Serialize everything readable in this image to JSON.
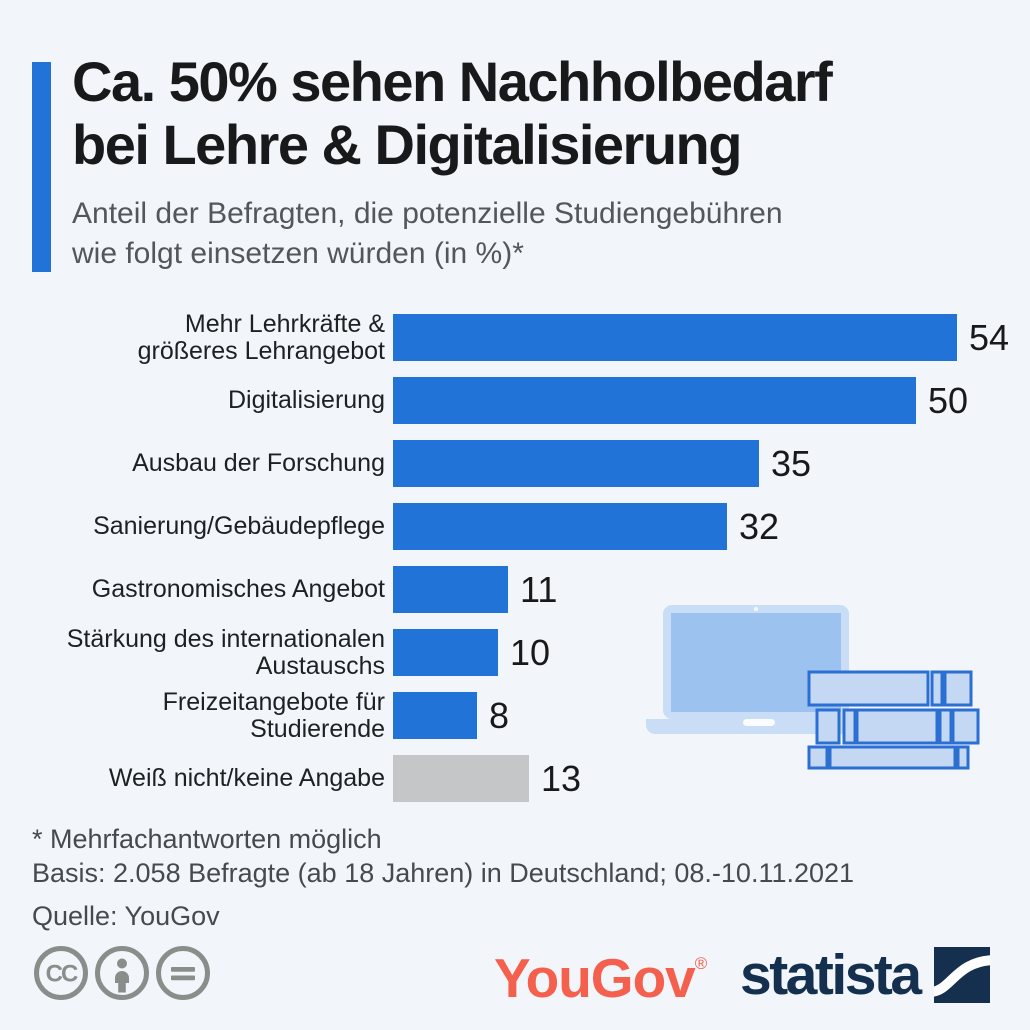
{
  "page": {
    "background": "#f2f5f9"
  },
  "header": {
    "accent_color": "#2273d8",
    "title_line1": "Ca. 50% sehen Nachholbedarf",
    "title_line2": "bei Lehre & Digitalisierung",
    "subtitle_line1": "Anteil der Befragten, die potenzielle Studiengebühren",
    "subtitle_line2": "wie folgt einsetzen würden (in %)*"
  },
  "chart_data": {
    "type": "bar",
    "orientation": "horizontal",
    "unit": "%",
    "title": "Ca. 50% sehen Nachholbedarf bei Lehre & Digitalisierung",
    "subtitle": "Anteil der Befragten, die potenzielle Studiengebühren wie folgt einsetzen würden (in %)*",
    "categories": [
      "Mehr Lehrkräfte &\ngrößeres Lehrangebot",
      "Digitalisierung",
      "Ausbau der Forschung",
      "Sanierung/Gebäudepflege",
      "Gastronomisches Angebot",
      "Stärkung des internationalen\nAustauschs",
      "Freizeitangebote für\nStudierende",
      "Weiß nicht/keine Angabe"
    ],
    "values": [
      54,
      50,
      35,
      32,
      11,
      10,
      8,
      13
    ],
    "value_labels": [
      "54",
      "50",
      "35",
      "32",
      "11",
      "10",
      "8",
      "13"
    ],
    "bar_colors": [
      "#2273d8",
      "#2273d8",
      "#2273d8",
      "#2273d8",
      "#2273d8",
      "#2273d8",
      "#2273d8",
      "#c5c6c8"
    ],
    "xlim": [
      0,
      54
    ],
    "grid": false,
    "legend": false
  },
  "footnotes": {
    "note": "* Mehrfachantworten möglich",
    "basis": "Basis: 2.058 Befragte (ab 18 Jahren) in Deutschland; 08.-10.11.2021",
    "source": "Quelle: YouGov"
  },
  "footer": {
    "license_icons": [
      "cc-icon",
      "attribution-icon",
      "equals-icon"
    ],
    "license_color": "#8a8e8b",
    "yougov_text": "YouGov",
    "yougov_registered": "®",
    "yougov_color": "#f4604d",
    "statista_text": "statista",
    "statista_color": "#15304e"
  },
  "illustration": {
    "name": "laptop-and-books",
    "laptop_body_color": "#c9ddf6",
    "screen_color": "#9cc3ef",
    "book_fill": "#c4d8f4",
    "book_stroke": "#2b6fd3"
  }
}
